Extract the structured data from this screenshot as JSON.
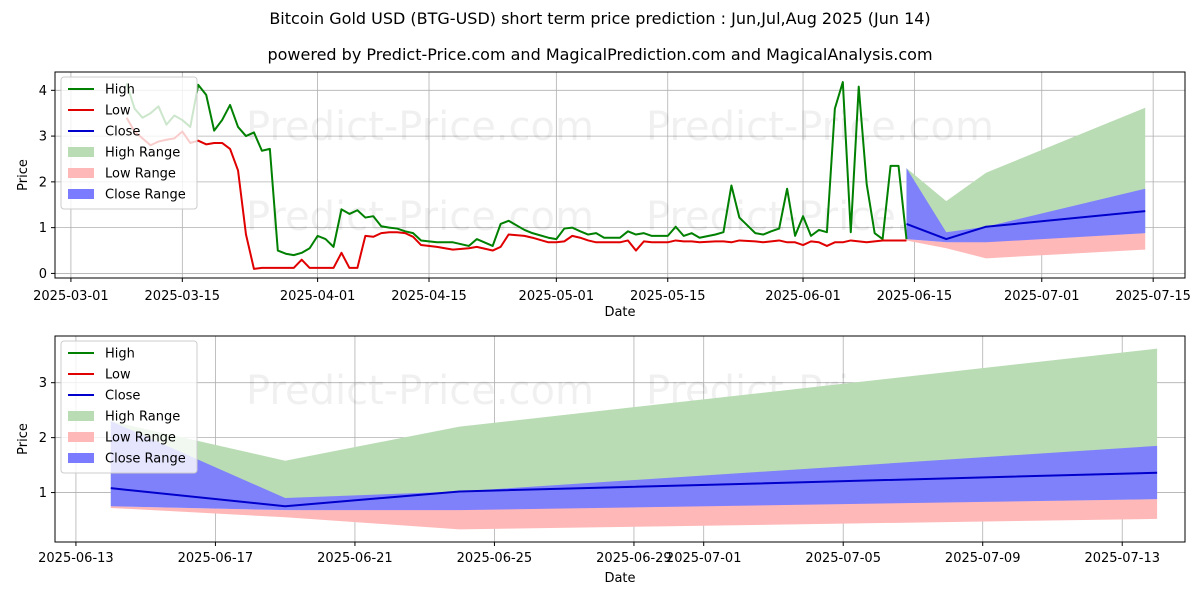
{
  "title": "Bitcoin Gold USD (BTG-USD) short term price prediction : Jun,Jul,Aug 2025 (Jun 14)",
  "subtitle": "powered by Predict-Price.com and MagicalPrediction.com and MagicalAnalysis.com",
  "watermark": "Predict-Price.com",
  "colors": {
    "high": "#008000",
    "low": "#e00000",
    "close": "#0000cc",
    "high_range": "#b9dcb4",
    "low_range": "#ffb8b8",
    "close_range": "#7b7bff"
  },
  "chart_data": [
    {
      "type": "line",
      "xlabel": "Date",
      "ylabel": "Price",
      "xlim": [
        "2025-02-27",
        "2025-07-19"
      ],
      "ylim": [
        -0.1,
        4.4
      ],
      "xticks": [
        "2025-03-01",
        "2025-03-15",
        "2025-04-01",
        "2025-04-15",
        "2025-05-01",
        "2025-05-15",
        "2025-06-01",
        "2025-06-15",
        "2025-07-01",
        "2025-07-15"
      ],
      "yticks": [
        0,
        1,
        2,
        3,
        4
      ],
      "grid": true,
      "legend": [
        "High",
        "Low",
        "Close",
        "High Range",
        "Low Range",
        "Close Range"
      ],
      "legend_position": "top-left",
      "series": [
        {
          "name": "High",
          "x": [
            "2025-03-08",
            "2025-03-09",
            "2025-03-10",
            "2025-03-11",
            "2025-03-12",
            "2025-03-13",
            "2025-03-14",
            "2025-03-15",
            "2025-03-16",
            "2025-03-17",
            "2025-03-18",
            "2025-03-19",
            "2025-03-20",
            "2025-03-21",
            "2025-03-22",
            "2025-03-23",
            "2025-03-24",
            "2025-03-25",
            "2025-03-26",
            "2025-03-27",
            "2025-03-28",
            "2025-03-29",
            "2025-03-30",
            "2025-03-31",
            "2025-04-01",
            "2025-04-02",
            "2025-04-03",
            "2025-04-04",
            "2025-04-05",
            "2025-04-06",
            "2025-04-07",
            "2025-04-08",
            "2025-04-09",
            "2025-04-10",
            "2025-04-11",
            "2025-04-12",
            "2025-04-13",
            "2025-04-14",
            "2025-04-16",
            "2025-04-18",
            "2025-04-20",
            "2025-04-21",
            "2025-04-23",
            "2025-04-24",
            "2025-04-25",
            "2025-04-27",
            "2025-04-28",
            "2025-04-30",
            "2025-05-01",
            "2025-05-02",
            "2025-05-03",
            "2025-05-04",
            "2025-05-05",
            "2025-05-06",
            "2025-05-07",
            "2025-05-09",
            "2025-05-10",
            "2025-05-11",
            "2025-05-12",
            "2025-05-13",
            "2025-05-15",
            "2025-05-16",
            "2025-05-17",
            "2025-05-18",
            "2025-05-19",
            "2025-05-21",
            "2025-05-22",
            "2025-05-23",
            "2025-05-24",
            "2025-05-26",
            "2025-05-27",
            "2025-05-28",
            "2025-05-29",
            "2025-05-30",
            "2025-05-31",
            "2025-06-01",
            "2025-06-02",
            "2025-06-03",
            "2025-06-04",
            "2025-06-05",
            "2025-06-06",
            "2025-06-07",
            "2025-06-08",
            "2025-06-09",
            "2025-06-10",
            "2025-06-11",
            "2025-06-12",
            "2025-06-13",
            "2025-06-14"
          ],
          "values": [
            4.15,
            3.6,
            3.4,
            3.5,
            3.65,
            3.25,
            3.45,
            3.35,
            3.2,
            4.12,
            3.9,
            3.12,
            3.35,
            3.68,
            3.2,
            3.0,
            3.08,
            2.68,
            2.72,
            0.5,
            0.43,
            0.4,
            0.45,
            0.55,
            0.82,
            0.75,
            0.58,
            1.4,
            1.3,
            1.38,
            1.22,
            1.25,
            1.03,
            1.0,
            0.98,
            0.92,
            0.88,
            0.72,
            0.68,
            0.68,
            0.6,
            0.75,
            0.6,
            1.08,
            1.15,
            0.95,
            0.88,
            0.78,
            0.75,
            0.98,
            1.0,
            0.92,
            0.85,
            0.88,
            0.78,
            0.78,
            0.92,
            0.85,
            0.88,
            0.82,
            0.82,
            1.02,
            0.82,
            0.88,
            0.78,
            0.85,
            0.9,
            1.92,
            1.22,
            0.88,
            0.85,
            0.92,
            0.98,
            1.85,
            0.82,
            1.25,
            0.82,
            0.95,
            0.9,
            3.6,
            4.18,
            0.9,
            4.08,
            1.95,
            0.88,
            0.75,
            2.35,
            2.35,
            0.75
          ]
        },
        {
          "name": "Low",
          "x": [
            "2025-03-08",
            "2025-03-09",
            "2025-03-10",
            "2025-03-11",
            "2025-03-12",
            "2025-03-13",
            "2025-03-14",
            "2025-03-15",
            "2025-03-16",
            "2025-03-17",
            "2025-03-18",
            "2025-03-19",
            "2025-03-20",
            "2025-03-21",
            "2025-03-22",
            "2025-03-23",
            "2025-03-24",
            "2025-03-25",
            "2025-03-26",
            "2025-03-27",
            "2025-03-28",
            "2025-03-29",
            "2025-03-30",
            "2025-03-31",
            "2025-04-01",
            "2025-04-02",
            "2025-04-03",
            "2025-04-04",
            "2025-04-05",
            "2025-04-06",
            "2025-04-07",
            "2025-04-08",
            "2025-04-09",
            "2025-04-10",
            "2025-04-11",
            "2025-04-12",
            "2025-04-13",
            "2025-04-14",
            "2025-04-16",
            "2025-04-18",
            "2025-04-20",
            "2025-04-21",
            "2025-04-23",
            "2025-04-24",
            "2025-04-25",
            "2025-04-27",
            "2025-04-28",
            "2025-04-30",
            "2025-05-01",
            "2025-05-02",
            "2025-05-03",
            "2025-05-04",
            "2025-05-05",
            "2025-05-06",
            "2025-05-07",
            "2025-05-09",
            "2025-05-10",
            "2025-05-11",
            "2025-05-12",
            "2025-05-13",
            "2025-05-15",
            "2025-05-16",
            "2025-05-17",
            "2025-05-18",
            "2025-05-19",
            "2025-05-21",
            "2025-05-22",
            "2025-05-23",
            "2025-05-24",
            "2025-05-26",
            "2025-05-27",
            "2025-05-28",
            "2025-05-29",
            "2025-05-30",
            "2025-05-31",
            "2025-06-01",
            "2025-06-02",
            "2025-06-03",
            "2025-06-04",
            "2025-06-05",
            "2025-06-06",
            "2025-06-07",
            "2025-06-08",
            "2025-06-09",
            "2025-06-10",
            "2025-06-11",
            "2025-06-12",
            "2025-06-13",
            "2025-06-14"
          ],
          "values": [
            3.4,
            3.1,
            2.95,
            2.8,
            2.88,
            2.92,
            2.95,
            3.1,
            2.85,
            2.9,
            2.82,
            2.85,
            2.85,
            2.72,
            2.25,
            0.85,
            0.1,
            0.12,
            0.12,
            0.12,
            0.12,
            0.12,
            0.3,
            0.12,
            0.12,
            0.12,
            0.12,
            0.45,
            0.12,
            0.12,
            0.82,
            0.8,
            0.88,
            0.9,
            0.9,
            0.88,
            0.8,
            0.62,
            0.58,
            0.52,
            0.55,
            0.58,
            0.5,
            0.58,
            0.85,
            0.82,
            0.78,
            0.68,
            0.68,
            0.7,
            0.82,
            0.78,
            0.72,
            0.68,
            0.68,
            0.68,
            0.72,
            0.5,
            0.7,
            0.68,
            0.68,
            0.72,
            0.7,
            0.7,
            0.68,
            0.7,
            0.7,
            0.68,
            0.72,
            0.7,
            0.68,
            0.7,
            0.72,
            0.68,
            0.68,
            0.62,
            0.7,
            0.68,
            0.6,
            0.68,
            0.68,
            0.72,
            0.7,
            0.68,
            0.7,
            0.72,
            0.72,
            0.72,
            0.72
          ]
        },
        {
          "name": "Close",
          "x": [
            "2025-06-14",
            "2025-06-19",
            "2025-06-24",
            "2025-07-14"
          ],
          "values": [
            1.08,
            0.75,
            1.02,
            1.36
          ]
        }
      ],
      "ranges": [
        {
          "name": "High Range",
          "x": [
            "2025-06-14",
            "2025-06-19",
            "2025-06-24",
            "2025-07-14"
          ],
          "upper": [
            2.3,
            1.58,
            2.2,
            3.62
          ],
          "lower": [
            0.75,
            0.7,
            0.7,
            0.88
          ]
        },
        {
          "name": "Low Range",
          "x": [
            "2025-06-14",
            "2025-06-19",
            "2025-06-24",
            "2025-07-14"
          ],
          "upper": [
            0.75,
            0.68,
            0.7,
            0.88
          ],
          "lower": [
            0.72,
            0.55,
            0.33,
            0.52
          ]
        },
        {
          "name": "Close Range",
          "x": [
            "2025-06-14",
            "2025-06-19",
            "2025-06-24",
            "2025-07-14"
          ],
          "upper": [
            2.3,
            0.9,
            1.02,
            1.85
          ],
          "lower": [
            0.75,
            0.68,
            0.68,
            0.88
          ]
        }
      ]
    },
    {
      "type": "line",
      "xlabel": "Date",
      "ylabel": "Price",
      "xlim": [
        "2025-06-12.4",
        "2025-07-14.8"
      ],
      "ylim": [
        0.1,
        3.85
      ],
      "xticks": [
        "2025-06-13",
        "2025-06-17",
        "2025-06-21",
        "2025-06-25",
        "2025-06-29",
        "2025-07-01",
        "2025-07-05",
        "2025-07-09",
        "2025-07-13"
      ],
      "yticks": [
        1,
        2,
        3
      ],
      "grid": true,
      "legend": [
        "High",
        "Low",
        "Close",
        "High Range",
        "Low Range",
        "Close Range"
      ],
      "legend_position": "top-left",
      "series": [
        {
          "name": "Close",
          "x": [
            "2025-06-14",
            "2025-06-19",
            "2025-06-24",
            "2025-07-14"
          ],
          "values": [
            1.08,
            0.75,
            1.02,
            1.36
          ]
        }
      ],
      "ranges": [
        {
          "name": "High Range",
          "x": [
            "2025-06-14",
            "2025-06-19",
            "2025-06-24",
            "2025-07-14"
          ],
          "upper": [
            2.3,
            1.58,
            2.2,
            3.62
          ],
          "lower": [
            0.75,
            0.7,
            0.7,
            0.88
          ]
        },
        {
          "name": "Low Range",
          "x": [
            "2025-06-14",
            "2025-06-19",
            "2025-06-24",
            "2025-07-14"
          ],
          "upper": [
            0.75,
            0.68,
            0.7,
            0.88
          ],
          "lower": [
            0.72,
            0.55,
            0.33,
            0.52
          ]
        },
        {
          "name": "Close Range",
          "x": [
            "2025-06-14",
            "2025-06-19",
            "2025-06-24",
            "2025-07-14"
          ],
          "upper": [
            2.3,
            0.9,
            1.02,
            1.85
          ],
          "lower": [
            0.75,
            0.68,
            0.68,
            0.88
          ]
        }
      ]
    }
  ]
}
